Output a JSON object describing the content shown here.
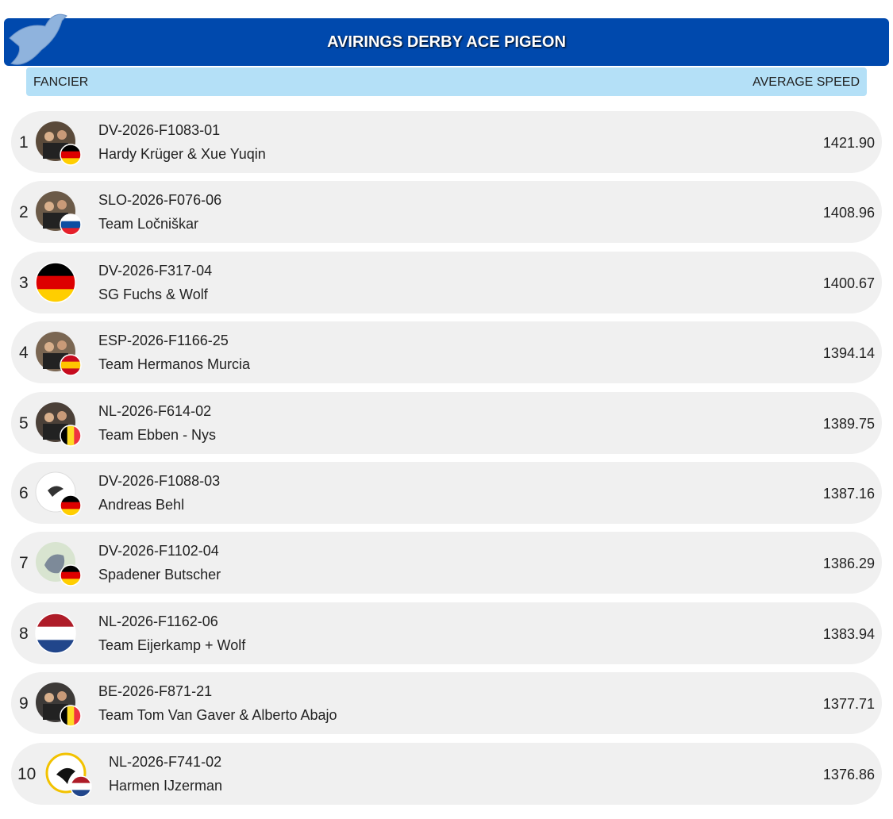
{
  "header": {
    "title": "AVIRINGS DERBY ACE PIGEON"
  },
  "columns": {
    "fancier": "FANCIER",
    "speed": "AVERAGE SPEED"
  },
  "rows": [
    {
      "rank": 1,
      "ring": "DV-2026-F1083-01",
      "name": "Hardy Krüger & Xue Yuqin",
      "speed": "1421.90"
    },
    {
      "rank": 2,
      "ring": "SLO-2026-F076-06",
      "name": "Team Ločniškar",
      "speed": "1408.96"
    },
    {
      "rank": 3,
      "ring": "DV-2026-F317-04",
      "name": "SG Fuchs & Wolf",
      "speed": "1400.67"
    },
    {
      "rank": 4,
      "ring": "ESP-2026-F1166-25",
      "name": "Team Hermanos Murcia",
      "speed": "1394.14"
    },
    {
      "rank": 5,
      "ring": "NL-2026-F614-02",
      "name": "Team Ebben - Nys",
      "speed": "1389.75"
    },
    {
      "rank": 6,
      "ring": "DV-2026-F1088-03",
      "name": "Andreas Behl",
      "speed": "1387.16"
    },
    {
      "rank": 7,
      "ring": "DV-2026-F1102-04",
      "name": "Spadener Butscher",
      "speed": "1386.29"
    },
    {
      "rank": 8,
      "ring": "NL-2026-F1162-06",
      "name": "Team Eijerkamp + Wolf",
      "speed": "1383.94"
    },
    {
      "rank": 9,
      "ring": "BE-2026-F871-21",
      "name": "Team Tom Van Gaver & Alberto Abajo",
      "speed": "1377.71"
    },
    {
      "rank": 10,
      "ring": "NL-2026-F741-02",
      "name": "Harmen IJzerman",
      "speed": "1376.86"
    }
  ]
}
